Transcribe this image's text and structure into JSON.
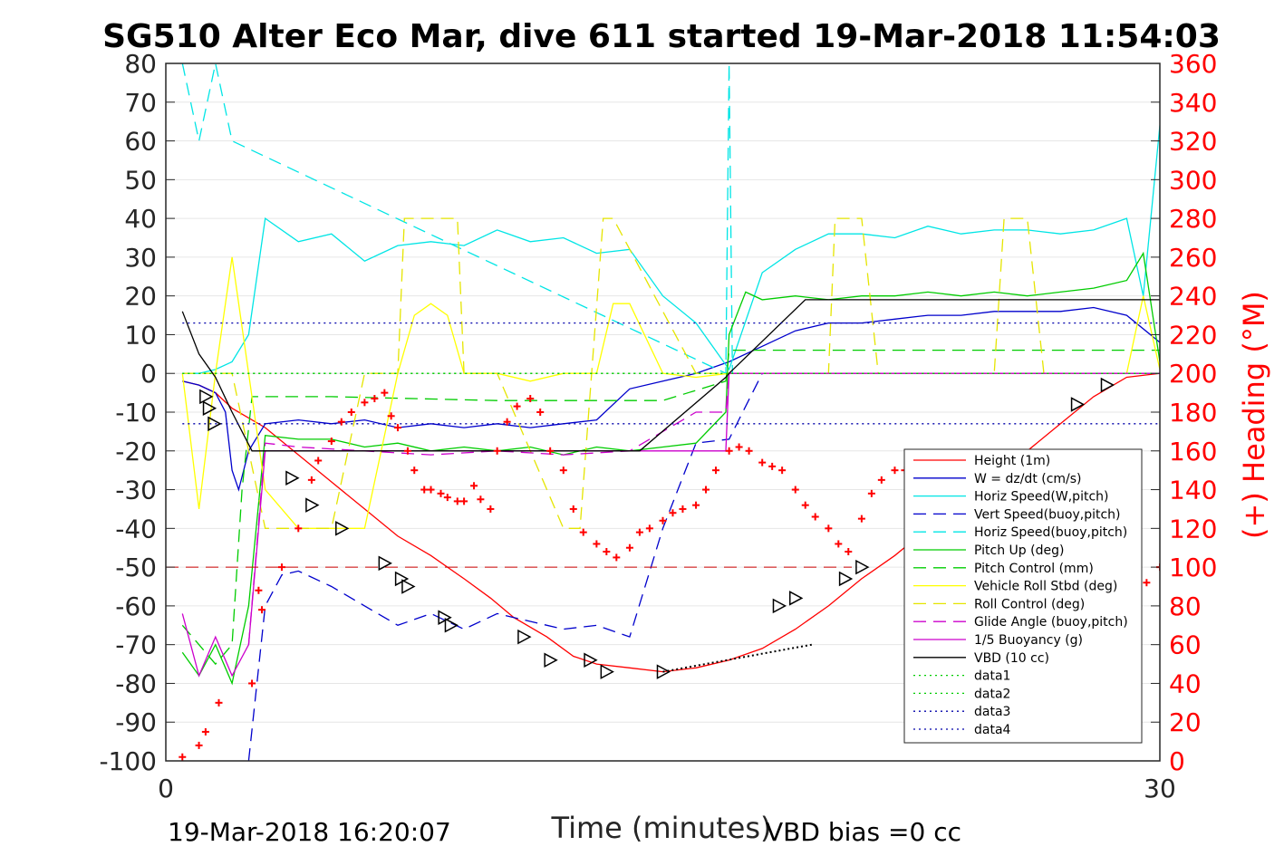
{
  "chart_data": {
    "type": "line",
    "title": "SG510 Alter Eco Mar, dive 611 started 19-Mar-2018 11:54:03",
    "xlabel": "Time (minutes)",
    "ylabel": "",
    "y2label": "(+) Heading (°M)",
    "xlim": [
      0,
      30
    ],
    "ylim": [
      -100,
      80
    ],
    "y2lim": [
      0,
      360
    ],
    "x_ticks": [
      "0",
      "30"
    ],
    "y_ticks": [
      "80",
      "70",
      "60",
      "50",
      "40",
      "30",
      "20",
      "10",
      "0",
      "-10",
      "-20",
      "-30",
      "-40",
      "-50",
      "-60",
      "-70",
      "-80",
      "-90",
      "-100"
    ],
    "y2_ticks": [
      "360",
      "340",
      "320",
      "300",
      "280",
      "260",
      "240",
      "220",
      "200",
      "180",
      "160",
      "140",
      "120",
      "100",
      "80",
      "60",
      "40",
      "20",
      "0"
    ],
    "grid": "horizontal",
    "legend_position": "bottom-right",
    "footer_left": "19-Mar-2018 16:20:07",
    "footer_right": "VBD bias =0 cc",
    "colors": {
      "height": "#ff0000",
      "w": "#0000cc",
      "horiz_w": "#00e5e5",
      "vert_buoy": "#0000cc",
      "horiz_buoy": "#00e5e5",
      "pitch": "#00cc00",
      "pitch_ctl": "#00cc00",
      "roll": "#ffff00",
      "roll_ctl": "#e5e500",
      "glide": "#cc00cc",
      "buoy": "#cc00cc",
      "vbd": "#000000",
      "data1": "#00cc00",
      "data2": "#00cc00",
      "data3": "#0000aa",
      "data4": "#0000aa",
      "heading": "#ff0000"
    },
    "series": [
      {
        "key": "height",
        "name": "Height (1m)",
        "style": "solid",
        "x": [
          0.5,
          1,
          1.5,
          2,
          3,
          4,
          5,
          6,
          7,
          8,
          9,
          9.8,
          10.5,
          11.5,
          12.3,
          13,
          14,
          15,
          16,
          17,
          18,
          19,
          20,
          21,
          22,
          23,
          24,
          25,
          26,
          27,
          28,
          29,
          30
        ],
        "y": [
          -2,
          -3,
          -5,
          -9,
          -14,
          -21,
          -28,
          -35,
          -42,
          -47,
          -53,
          -58,
          -63,
          -68,
          -73,
          -75,
          -76,
          -77,
          -76,
          -74,
          -71,
          -66,
          -60,
          -53,
          -47,
          -40,
          -33,
          -26,
          -20,
          -13,
          -6,
          -1,
          0
        ]
      },
      {
        "key": "w",
        "name": "W = dz/dt (cm/s)",
        "style": "solid",
        "x": [
          0.5,
          1,
          1.5,
          1.8,
          2,
          2.2,
          2.5,
          3,
          4,
          5,
          6,
          7,
          8,
          9,
          10,
          11,
          12,
          13,
          14,
          15,
          16,
          17,
          18,
          19,
          20,
          21,
          22,
          23,
          24,
          25,
          26,
          27,
          28,
          29,
          30
        ],
        "y": [
          -2,
          -3,
          -5,
          -10,
          -25,
          -30,
          -20,
          -13,
          -12,
          -13,
          -12,
          -14,
          -13,
          -14,
          -13,
          -14,
          -13,
          -12,
          -4,
          -2,
          0,
          3,
          7,
          11,
          13,
          13,
          14,
          15,
          15,
          16,
          16,
          16,
          17,
          15,
          8
        ]
      },
      {
        "key": "horiz_w",
        "name": "Horiz Speed(W,pitch)",
        "style": "solid",
        "x": [
          0.5,
          1,
          1.5,
          2,
          2.5,
          3,
          4,
          5,
          6,
          7,
          8,
          9,
          10,
          11,
          12,
          13,
          14,
          15,
          16,
          17,
          18,
          19,
          20,
          21,
          22,
          23,
          24,
          25,
          26,
          27,
          28,
          29,
          29.5,
          30
        ],
        "y": [
          0,
          0,
          1,
          3,
          10,
          40,
          34,
          36,
          29,
          33,
          34,
          33,
          37,
          34,
          35,
          31,
          32,
          20,
          13,
          1,
          26,
          32,
          36,
          36,
          35,
          38,
          36,
          37,
          37,
          36,
          37,
          40,
          20,
          64
        ]
      },
      {
        "key": "vert_buoy",
        "name": "Vert Speed(buoy,pitch)",
        "style": "dash",
        "x": [
          2.5,
          3,
          3.5,
          4,
          5,
          6,
          7,
          8,
          9,
          10,
          11,
          12,
          13,
          14,
          15,
          16,
          17,
          18,
          19,
          20,
          21,
          22,
          23,
          24,
          25,
          26,
          27,
          28,
          29,
          30
        ],
        "y": [
          -100,
          -60,
          -52,
          -51,
          -55,
          -60,
          -65,
          -62,
          -66,
          -62,
          -64,
          -66,
          -65,
          -68,
          -40,
          -18,
          -17,
          0,
          0,
          0,
          0,
          0,
          0,
          0,
          0,
          0,
          0,
          0,
          0,
          0
        ]
      },
      {
        "key": "horiz_buoy",
        "name": "Horiz Speed(buoy,pitch)",
        "style": "dash",
        "x": [
          0.5,
          1,
          1.5,
          2,
          16.9,
          17,
          17.1,
          18,
          20,
          22,
          24,
          26,
          28,
          30
        ],
        "y": [
          80,
          60,
          80,
          60,
          0,
          80,
          0,
          0,
          0,
          0,
          0,
          0,
          0,
          0
        ]
      },
      {
        "key": "pitch",
        "name": "Pitch Up (deg)",
        "style": "solid",
        "x": [
          0.5,
          1,
          1.5,
          2,
          2.5,
          3,
          4,
          5,
          6,
          7,
          8,
          9,
          10,
          11,
          12,
          13,
          14,
          15,
          16,
          16.9,
          17,
          17.5,
          18,
          19,
          20,
          21,
          22,
          23,
          24,
          25,
          26,
          27,
          28,
          29,
          29.5,
          30
        ],
        "y": [
          -72,
          -78,
          -70,
          -80,
          -60,
          -16,
          -17,
          -17,
          -19,
          -18,
          -20,
          -19,
          -20,
          -19,
          -21,
          -19,
          -20,
          -19,
          -18,
          -10,
          10,
          21,
          19,
          20,
          19,
          20,
          20,
          21,
          20,
          21,
          20,
          21,
          22,
          24,
          31,
          3
        ]
      },
      {
        "key": "pitch_ctl",
        "name": "Pitch Control (mm)",
        "style": "dash",
        "x": [
          0.5,
          1,
          1.5,
          2,
          2.3,
          2.6,
          3,
          5,
          10,
          15,
          16.9,
          17,
          20,
          25,
          30
        ],
        "y": [
          -65,
          -70,
          -75,
          -70,
          -30,
          -6,
          -6,
          -6,
          -7,
          -7,
          -2,
          6,
          6,
          6,
          6
        ]
      },
      {
        "key": "roll",
        "name": "Vehicle Roll Stbd (deg)",
        "style": "solid",
        "x": [
          0.5,
          1,
          1.5,
          2,
          2.5,
          3,
          4,
          5,
          6,
          7,
          7.5,
          8,
          8.5,
          9,
          10,
          11,
          12,
          13,
          13.5,
          14,
          15,
          16,
          17,
          18,
          19,
          20,
          21,
          22,
          23,
          24,
          25,
          26,
          27,
          28,
          29,
          29.5,
          30
        ],
        "y": [
          0,
          -35,
          0,
          30,
          0,
          -30,
          -40,
          -40,
          -40,
          0,
          15,
          18,
          15,
          0,
          0,
          -2,
          0,
          0,
          18,
          18,
          0,
          -1,
          0,
          0,
          0,
          0,
          0,
          0,
          0,
          0,
          0,
          0,
          0,
          0,
          0,
          20,
          1
        ]
      },
      {
        "key": "roll_ctl",
        "name": "Roll Control (deg)",
        "style": "dash",
        "x": [
          0.5,
          2,
          3,
          5,
          6,
          7,
          7.2,
          8,
          8.8,
          9,
          10,
          12,
          12.5,
          13.2,
          13.5,
          16,
          17,
          18,
          20,
          20.2,
          21,
          21.5,
          22,
          25,
          25.3,
          26,
          26.5,
          29,
          30
        ],
        "y": [
          0,
          0,
          -40,
          -40,
          0,
          0,
          40,
          40,
          40,
          0,
          0,
          -40,
          -40,
          40,
          40,
          0,
          0,
          0,
          0,
          40,
          40,
          0,
          0,
          0,
          40,
          40,
          0,
          0,
          0
        ]
      },
      {
        "key": "glide",
        "name": "Glide Angle (buoy,pitch)",
        "style": "dash",
        "x": [
          2.5,
          3,
          4,
          6,
          8,
          10,
          12,
          14,
          15,
          16,
          16.9,
          17,
          20,
          25,
          30
        ],
        "y": [
          -70,
          -18,
          -19,
          -20,
          -21,
          -20,
          -21,
          -20,
          -15,
          -10,
          -10,
          0,
          0,
          0,
          0
        ]
      },
      {
        "key": "buoy",
        "name": "1/5 Buoyancy (g)",
        "style": "solid",
        "x": [
          0.5,
          1,
          1.5,
          2,
          2.5,
          3,
          4,
          5,
          10,
          15,
          16.9,
          17,
          20,
          25,
          30
        ],
        "y": [
          -62,
          -78,
          -68,
          -78,
          -70,
          -20,
          -20,
          -20,
          -20,
          -20,
          -20,
          0,
          0,
          0,
          0
        ]
      },
      {
        "key": "vbd",
        "name": "VBD (10 cc)",
        "style": "solid",
        "x": [
          0.5,
          1,
          1.5,
          2,
          2.6,
          3,
          3.5,
          14,
          14.3,
          16.9,
          17,
          19.3,
          30
        ],
        "y": [
          16,
          5,
          -1,
          -10,
          -20,
          -20,
          -20,
          -20,
          -20,
          -1,
          0,
          19,
          19
        ]
      },
      {
        "key": "data1",
        "name": "data1",
        "style": "dot",
        "x": [
          0.5,
          30
        ],
        "y": [
          0,
          0
        ]
      },
      {
        "key": "data2",
        "name": "data2",
        "style": "dot",
        "x": [
          0.5,
          30
        ],
        "y": [
          0,
          0
        ]
      },
      {
        "key": "data3",
        "name": "data3",
        "style": "dot",
        "x": [
          0.5,
          30
        ],
        "y": [
          13,
          13
        ]
      },
      {
        "key": "data4",
        "name": "data4",
        "style": "dot",
        "x": [
          0.5,
          30
        ],
        "y": [
          -13,
          -13
        ]
      }
    ],
    "heading_mean": 100,
    "heading": {
      "x": [
        0.5,
        1,
        1.2,
        1.6,
        2.6,
        2.8,
        2.9,
        3.5,
        4,
        4.4,
        4.6,
        5,
        5.3,
        5.6,
        6,
        6.3,
        6.6,
        6.8,
        7,
        7.3,
        7.5,
        7.8,
        8,
        8.3,
        8.5,
        8.8,
        9,
        9.3,
        9.5,
        9.8,
        10,
        10.3,
        10.6,
        11,
        11.3,
        11.6,
        12,
        12.3,
        12.6,
        13,
        13.3,
        13.6,
        14,
        14.3,
        14.6,
        15,
        15.3,
        15.6,
        16,
        16.3,
        16.6,
        17,
        17.3,
        17.6,
        18,
        18.3,
        18.6,
        19,
        19.3,
        19.6,
        20,
        20.3,
        20.6,
        21,
        21.3,
        21.6,
        22,
        22.3,
        22.6,
        23,
        23.3,
        23.6,
        24,
        24.3,
        24.6,
        25,
        25.3,
        25.6,
        26,
        26.3,
        26.6,
        27,
        27.3,
        27.6,
        28,
        28.3,
        28.6,
        29,
        29.3,
        29.6,
        30
      ],
      "y": [
        2,
        8,
        15,
        30,
        40,
        88,
        78,
        100,
        120,
        145,
        155,
        165,
        175,
        180,
        185,
        187,
        190,
        178,
        172,
        160,
        150,
        140,
        140,
        138,
        136,
        134,
        134,
        142,
        135,
        130,
        160,
        175,
        183,
        187,
        180,
        160,
        150,
        130,
        118,
        112,
        108,
        105,
        110,
        118,
        120,
        124,
        128,
        130,
        132,
        140,
        150,
        160,
        162,
        160,
        154,
        152,
        150,
        140,
        132,
        126,
        120,
        112,
        108,
        125,
        138,
        145,
        150,
        150,
        148,
        145,
        140,
        132,
        125,
        120,
        118,
        115,
        110,
        108,
        105,
        104,
        102,
        100,
        100,
        100,
        99,
        97,
        96,
        94,
        96,
        92,
        100
      ]
    },
    "heading_note": "heading values in degrees (right axis)",
    "triangle_markers": {
      "x": [
        1.2,
        1.3,
        1.45,
        3.8,
        4.4,
        5.3,
        6.6,
        7.1,
        7.3,
        8.4,
        8.6,
        10.8,
        11.6,
        12.8,
        13.3,
        15,
        18.5,
        19,
        20.5,
        21,
        23.1,
        23.7,
        27.5,
        28.4
      ],
      "y": [
        -6,
        -9,
        -13,
        -27,
        -34,
        -40,
        -49,
        -53,
        -55,
        -63,
        -65,
        -68,
        -74,
        -74,
        -77,
        -77,
        -60,
        -58,
        -53,
        -50,
        -35,
        -29,
        -8,
        -3
      ]
    }
  },
  "legend_items": [
    "Height (1m)",
    "W = dz/dt (cm/s)",
    "Horiz Speed(W,pitch)",
    "Vert Speed(buoy,pitch)",
    "Horiz Speed(buoy,pitch)",
    "Pitch Up (deg)",
    "Pitch Control (mm)",
    "Vehicle Roll Stbd (deg)",
    "Roll Control (deg)",
    "Glide Angle (buoy,pitch)",
    "1/5 Buoyancy (g)",
    "VBD (10 cc)",
    "data1",
    "data2",
    "data3",
    "data4"
  ]
}
